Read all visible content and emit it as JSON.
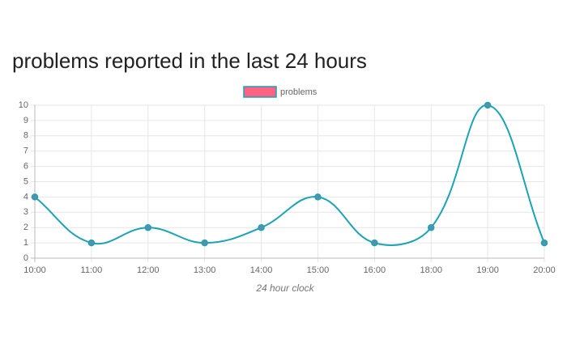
{
  "chart_data": {
    "type": "line",
    "title": "problems reported in the last 24 hours",
    "x_label": "24 hour clock",
    "categories": [
      "10:00",
      "11:00",
      "12:00",
      "13:00",
      "14:00",
      "15:00",
      "16:00",
      "18:00",
      "19:00",
      "20:00"
    ],
    "series": [
      {
        "name": "problems",
        "color": "#1ca3b4",
        "fill_color": "#ff6384",
        "values": [
          4,
          1,
          2,
          1,
          2,
          4,
          1,
          2,
          10,
          1
        ]
      }
    ],
    "ylim": [
      0,
      10
    ],
    "yticks": [
      0,
      1,
      2,
      3,
      4,
      5,
      6,
      7,
      8,
      9,
      10
    ],
    "grid": true,
    "legend": "top"
  }
}
